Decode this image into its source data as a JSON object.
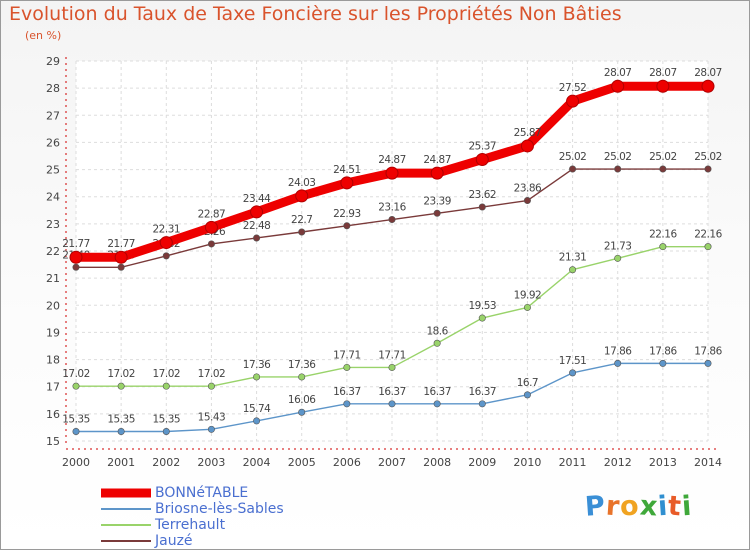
{
  "title": "Evolution du Taux de Taxe Foncière sur les Propriétés Non Bâties",
  "unit_label": "(en %)",
  "brand": {
    "letters": [
      "P",
      "r",
      "o",
      "x",
      "i",
      "t",
      "i"
    ],
    "colors": [
      "#3a8fd6",
      "#e8732a",
      "#f0a321",
      "#3fa83a",
      "#2f8fd0",
      "#e85b28",
      "#3fa83a"
    ]
  },
  "chart_data": {
    "type": "line",
    "title": "Evolution du Taux de Taxe Foncière sur les Propriétés Non Bâties",
    "ylabel": "(en %)",
    "xlabel": "",
    "x": [
      "2000",
      "2001",
      "2002",
      "2003",
      "2004",
      "2005",
      "2006",
      "2007",
      "2008",
      "2009",
      "2010",
      "2011",
      "2012",
      "2013",
      "2014"
    ],
    "ylim": [
      15,
      29
    ],
    "yticks": [
      15,
      16,
      17,
      18,
      19,
      20,
      21,
      22,
      23,
      24,
      25,
      26,
      27,
      28,
      29
    ],
    "grid": true,
    "legend_position": "bottom-left",
    "series": [
      {
        "name": "BONNéTABLE",
        "color": "#ee0000",
        "values": [
          21.77,
          21.77,
          22.31,
          22.87,
          23.44,
          24.03,
          24.51,
          24.87,
          24.87,
          25.37,
          25.87,
          27.52,
          28.07,
          28.07,
          28.07
        ],
        "labels": [
          "21.77",
          "21.77",
          "22.31",
          "22.87",
          "23.44",
          "24.03",
          "24.51",
          "24.87",
          "24.87",
          "25.37",
          "25.87",
          "27.52",
          "28.07",
          "28.07",
          "28.07"
        ]
      },
      {
        "name": "Briosne-lès-Sables",
        "color": "#5d95c9",
        "values": [
          15.35,
          15.35,
          15.35,
          15.43,
          15.74,
          16.06,
          16.37,
          16.37,
          16.37,
          16.37,
          16.7,
          17.51,
          17.86,
          17.86,
          17.86
        ],
        "labels": [
          "15.35",
          "15.35",
          "15.35",
          "15.43",
          "15.74",
          "16.06",
          "16.37",
          "16.37",
          "16.37",
          "16.37",
          "16.7",
          "17.51",
          "17.86",
          "17.86",
          "17.86"
        ]
      },
      {
        "name": "Terrehault",
        "color": "#99d36a",
        "values": [
          17.02,
          17.02,
          17.02,
          17.02,
          17.36,
          17.36,
          17.71,
          17.71,
          18.6,
          19.53,
          19.92,
          21.31,
          21.73,
          22.16,
          22.16
        ],
        "labels": [
          "17.02",
          "17.02",
          "17.02",
          "17.02",
          "17.36",
          "17.36",
          "17.71",
          "17.71",
          "18.6",
          "19.53",
          "19.92",
          "21.31",
          "21.73",
          "22.16",
          "22.16"
        ]
      },
      {
        "name": "Jauzé",
        "color": "#7a3a3a",
        "values": [
          21.4,
          21.4,
          21.82,
          22.26,
          22.48,
          22.7,
          22.93,
          23.16,
          23.39,
          23.62,
          23.86,
          25.02,
          25.02,
          25.02,
          25.02
        ],
        "labels": [
          "21.40",
          "21.40",
          "21.82",
          "22.26",
          "22.48",
          "22.7",
          "22.93",
          "23.16",
          "23.39",
          "23.62",
          "23.86",
          "25.02",
          "25.02",
          "25.02",
          "25.02"
        ]
      }
    ]
  }
}
